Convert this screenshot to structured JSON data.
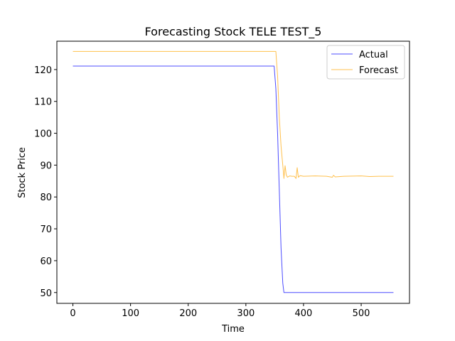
{
  "chart_data": {
    "type": "line",
    "title": "Forecasting Stock TELE TEST_5",
    "xlabel": "Time",
    "ylabel": "Stock Price",
    "xlim": [
      -27.8,
      583.8
    ],
    "ylim": [
      46.6,
      128.9
    ],
    "xticks": [
      0,
      100,
      200,
      300,
      400,
      500
    ],
    "yticks": [
      50,
      60,
      70,
      80,
      90,
      100,
      110,
      120
    ],
    "grid": false,
    "legend_position": "upper right",
    "series": [
      {
        "name": "Actual",
        "color": "#0000ff",
        "points": [
          [
            0,
            121.1
          ],
          [
            349,
            121.1
          ],
          [
            352,
            114
          ],
          [
            355,
            100
          ],
          [
            358,
            82
          ],
          [
            361,
            64
          ],
          [
            364,
            53
          ],
          [
            366,
            50.0
          ],
          [
            556,
            50.0
          ]
        ]
      },
      {
        "name": "Forecast",
        "color": "#ffa500",
        "points": [
          [
            0,
            125.7
          ],
          [
            352,
            125.7
          ],
          [
            355,
            118
          ],
          [
            358,
            105
          ],
          [
            361,
            96
          ],
          [
            363,
            92
          ],
          [
            365,
            88
          ],
          [
            366,
            85.8
          ],
          [
            368,
            89.8
          ],
          [
            370,
            87.0
          ],
          [
            372,
            86.2
          ],
          [
            376,
            86.6
          ],
          [
            380,
            86.5
          ],
          [
            384,
            86.5
          ],
          [
            387,
            85.8
          ],
          [
            389,
            89.2
          ],
          [
            391,
            86.2
          ],
          [
            394,
            86.7
          ],
          [
            400,
            86.5
          ],
          [
            420,
            86.6
          ],
          [
            440,
            86.5
          ],
          [
            450,
            86.2
          ],
          [
            452,
            86.8
          ],
          [
            455,
            86.3
          ],
          [
            470,
            86.5
          ],
          [
            500,
            86.6
          ],
          [
            515,
            86.4
          ],
          [
            530,
            86.5
          ],
          [
            556,
            86.5
          ]
        ]
      }
    ]
  },
  "legend": {
    "items": [
      {
        "label": "Actual",
        "color": "#0000ff"
      },
      {
        "label": "Forecast",
        "color": "#ffa500"
      }
    ]
  }
}
